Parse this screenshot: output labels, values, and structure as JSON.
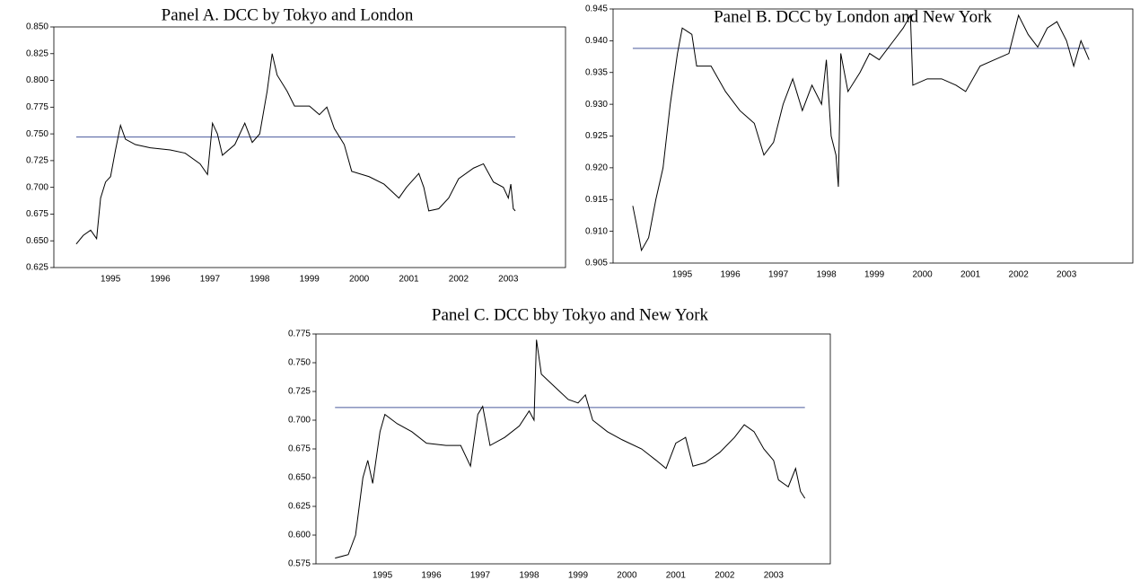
{
  "chart_data": [
    {
      "type": "line",
      "title": "Panel A. DCC by Tokyo and London",
      "color": "#000000",
      "x": [
        1994.31,
        1994.45,
        1994.6,
        1994.72,
        1994.8,
        1994.9,
        1995.0,
        1995.1,
        1995.2,
        1995.3,
        1995.5,
        1995.8,
        1996.2,
        1996.5,
        1996.8,
        1996.95,
        1997.05,
        1997.15,
        1997.25,
        1997.5,
        1997.7,
        1997.85,
        1998.0,
        1998.15,
        1998.25,
        1998.35,
        1998.55,
        1998.7,
        1999.0,
        1999.2,
        1999.35,
        1999.5,
        1999.7,
        1999.85,
        2000.2,
        2000.5,
        2000.8,
        2000.95,
        2001.2,
        2001.3,
        2001.4,
        2001.6,
        2001.8,
        2002.0,
        2002.3,
        2002.5,
        2002.7,
        2002.9,
        2003.0,
        2003.05,
        2003.1,
        2003.14
      ],
      "values": [
        0.647,
        0.655,
        0.66,
        0.652,
        0.69,
        0.705,
        0.71,
        0.735,
        0.758,
        0.745,
        0.74,
        0.737,
        0.735,
        0.732,
        0.722,
        0.712,
        0.76,
        0.75,
        0.73,
        0.74,
        0.76,
        0.742,
        0.75,
        0.79,
        0.825,
        0.805,
        0.79,
        0.776,
        0.776,
        0.768,
        0.775,
        0.755,
        0.74,
        0.715,
        0.71,
        0.703,
        0.69,
        0.7,
        0.713,
        0.7,
        0.678,
        0.68,
        0.69,
        0.708,
        0.718,
        0.722,
        0.705,
        0.7,
        0.69,
        0.703,
        0.68,
        0.678
      ],
      "hline": {
        "value": 0.747,
        "color": "#4a5a9c"
      },
      "xlim": [
        1993.86,
        2004.15
      ],
      "xticks": [
        1995,
        1996,
        1997,
        1998,
        1999,
        2000,
        2001,
        2002,
        2003
      ],
      "ylim": [
        0.625,
        0.85
      ],
      "yticks": [
        {
          "value": 0.625,
          "label": "0.625"
        },
        {
          "value": 0.65,
          "label": "0.650"
        },
        {
          "value": 0.675,
          "label": "0.675"
        },
        {
          "value": 0.7,
          "label": "0.700"
        },
        {
          "value": 0.725,
          "label": "0.725"
        },
        {
          "value": 0.75,
          "label": "0.750"
        },
        {
          "value": 0.775,
          "label": "0.775"
        },
        {
          "value": 0.8,
          "label": "0.800"
        },
        {
          "value": 0.825,
          "label": "0.825"
        },
        {
          "value": 0.85,
          "label": "0.850"
        }
      ]
    },
    {
      "type": "line",
      "title": "Panel B. DCC by London and New York",
      "color": "#000000",
      "x": [
        1993.97,
        1994.05,
        1994.15,
        1994.3,
        1994.45,
        1994.6,
        1994.75,
        1994.9,
        1995.0,
        1995.2,
        1995.3,
        1995.6,
        1995.9,
        1996.2,
        1996.5,
        1996.7,
        1996.9,
        1997.1,
        1997.3,
        1997.5,
        1997.7,
        1997.9,
        1998.0,
        1998.1,
        1998.2,
        1998.25,
        1998.3,
        1998.45,
        1998.7,
        1998.9,
        1999.1,
        1999.4,
        1999.6,
        1999.75,
        1999.8,
        2000.1,
        2000.4,
        2000.7,
        2000.9,
        2001.2,
        2001.5,
        2001.8,
        2002.0,
        2002.2,
        2002.4,
        2002.6,
        2002.8,
        2003.0,
        2003.15,
        2003.3,
        2003.47
      ],
      "values": [
        0.914,
        0.911,
        0.907,
        0.909,
        0.915,
        0.92,
        0.93,
        0.938,
        0.942,
        0.941,
        0.936,
        0.936,
        0.932,
        0.929,
        0.927,
        0.922,
        0.924,
        0.93,
        0.934,
        0.929,
        0.933,
        0.93,
        0.937,
        0.925,
        0.922,
        0.917,
        0.938,
        0.932,
        0.935,
        0.938,
        0.937,
        0.94,
        0.942,
        0.944,
        0.933,
        0.934,
        0.934,
        0.933,
        0.932,
        0.936,
        0.937,
        0.938,
        0.944,
        0.941,
        0.939,
        0.942,
        0.943,
        0.94,
        0.936,
        0.94,
        0.937
      ],
      "hline": {
        "value": 0.9388,
        "color": "#4a5a9c"
      },
      "xlim": [
        1993.56,
        2004.38
      ],
      "xticks": [
        1995,
        1996,
        1997,
        1998,
        1999,
        2000,
        2001,
        2002,
        2003
      ],
      "ylim": [
        0.905,
        0.945
      ],
      "yticks": [
        0.905,
        {
          "value": 0.91,
          "label": "0.910"
        },
        0.915,
        {
          "value": 0.92,
          "label": "0.920"
        },
        0.925,
        {
          "value": 0.93,
          "label": "0.930"
        },
        0.935,
        {
          "value": 0.94,
          "label": "0.940"
        },
        0.945
      ]
    },
    {
      "type": "line",
      "title": "Panel C. DCC bby Tokyo and New York",
      "color": "#000000",
      "x": [
        1994.03,
        1994.3,
        1994.45,
        1994.6,
        1994.7,
        1994.8,
        1994.95,
        1995.05,
        1995.3,
        1995.6,
        1995.9,
        1996.3,
        1996.6,
        1996.8,
        1996.95,
        1997.05,
        1997.2,
        1997.5,
        1997.8,
        1998.0,
        1998.1,
        1998.15,
        1998.25,
        1998.5,
        1998.8,
        1999.0,
        1999.15,
        1999.3,
        1999.6,
        1999.9,
        2000.3,
        2000.6,
        2000.8,
        2001.0,
        2001.2,
        2001.35,
        2001.6,
        2001.9,
        2002.2,
        2002.4,
        2002.6,
        2002.8,
        2003.0,
        2003.1,
        2003.3,
        2003.45,
        2003.55,
        2003.64
      ],
      "values": [
        0.58,
        0.583,
        0.6,
        0.65,
        0.665,
        0.645,
        0.69,
        0.705,
        0.697,
        0.69,
        0.68,
        0.678,
        0.678,
        0.66,
        0.705,
        0.712,
        0.678,
        0.685,
        0.695,
        0.708,
        0.7,
        0.77,
        0.74,
        0.73,
        0.718,
        0.715,
        0.722,
        0.7,
        0.69,
        0.683,
        0.675,
        0.665,
        0.658,
        0.68,
        0.685,
        0.66,
        0.663,
        0.672,
        0.685,
        0.696,
        0.69,
        0.675,
        0.665,
        0.648,
        0.642,
        0.658,
        0.638,
        0.632
      ],
      "hline": {
        "value": 0.711,
        "color": "#4a5a9c"
      },
      "xlim": [
        1993.64,
        2004.16
      ],
      "xticks": [
        1995,
        1996,
        1997,
        1998,
        1999,
        2000,
        2001,
        2002,
        2003
      ],
      "ylim": [
        0.575,
        0.775
      ],
      "yticks": [
        0.575,
        {
          "value": 0.6,
          "label": "0.600"
        },
        0.625,
        {
          "value": 0.65,
          "label": "0.650"
        },
        0.675,
        {
          "value": 0.7,
          "label": "0.700"
        },
        0.725,
        {
          "value": 0.75,
          "label": "0.750"
        },
        0.775
      ]
    }
  ]
}
